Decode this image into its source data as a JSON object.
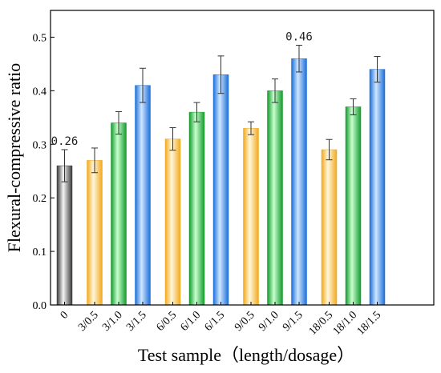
{
  "chart_data": {
    "type": "bar",
    "title": "",
    "xlabel": "Test sample（length/dosage）",
    "ylabel": "Flexural-compressive ratio",
    "ylim": [
      0.0,
      0.55
    ],
    "yticks": [
      "0.0",
      "0.1",
      "0.2",
      "0.3",
      "0.4",
      "0.5"
    ],
    "grid": false,
    "legend": "none",
    "groups": [
      {
        "bars": [
          {
            "label": "0",
            "value": 0.26,
            "error": 0.03,
            "color": "gray"
          }
        ]
      },
      {
        "bars": [
          {
            "label": "3/0.5",
            "value": 0.27,
            "error": 0.023,
            "color": "orange"
          },
          {
            "label": "3/1.0",
            "value": 0.34,
            "error": 0.021,
            "color": "green"
          },
          {
            "label": "3/1.5",
            "value": 0.41,
            "error": 0.032,
            "color": "blue"
          }
        ]
      },
      {
        "bars": [
          {
            "label": "6/0.5",
            "value": 0.31,
            "error": 0.021,
            "color": "orange"
          },
          {
            "label": "6/1.0",
            "value": 0.36,
            "error": 0.018,
            "color": "green"
          },
          {
            "label": "6/1.5",
            "value": 0.43,
            "error": 0.035,
            "color": "blue"
          }
        ]
      },
      {
        "bars": [
          {
            "label": "9/0.5",
            "value": 0.33,
            "error": 0.012,
            "color": "orange"
          },
          {
            "label": "9/1.0",
            "value": 0.4,
            "error": 0.022,
            "color": "green"
          },
          {
            "label": "9/1.5",
            "value": 0.46,
            "error": 0.025,
            "color": "blue"
          }
        ]
      },
      {
        "bars": [
          {
            "label": "18/0.5",
            "value": 0.29,
            "error": 0.019,
            "color": "orange"
          },
          {
            "label": "18/1.0",
            "value": 0.37,
            "error": 0.015,
            "color": "green"
          },
          {
            "label": "18/1.5",
            "value": 0.44,
            "error": 0.024,
            "color": "blue"
          }
        ]
      }
    ],
    "annotations": [
      {
        "text": "0.26",
        "at": "0"
      },
      {
        "text": "0.46",
        "at": "9/1.5"
      }
    ],
    "colors": {
      "gray": [
        "#3a3a3a",
        "#f5f5f5"
      ],
      "orange": [
        "#f1a91d",
        "#fff7dc"
      ],
      "green": [
        "#149a2e",
        "#c9ffcf"
      ],
      "blue": [
        "#1c6fd8",
        "#cfe6ff"
      ]
    }
  }
}
